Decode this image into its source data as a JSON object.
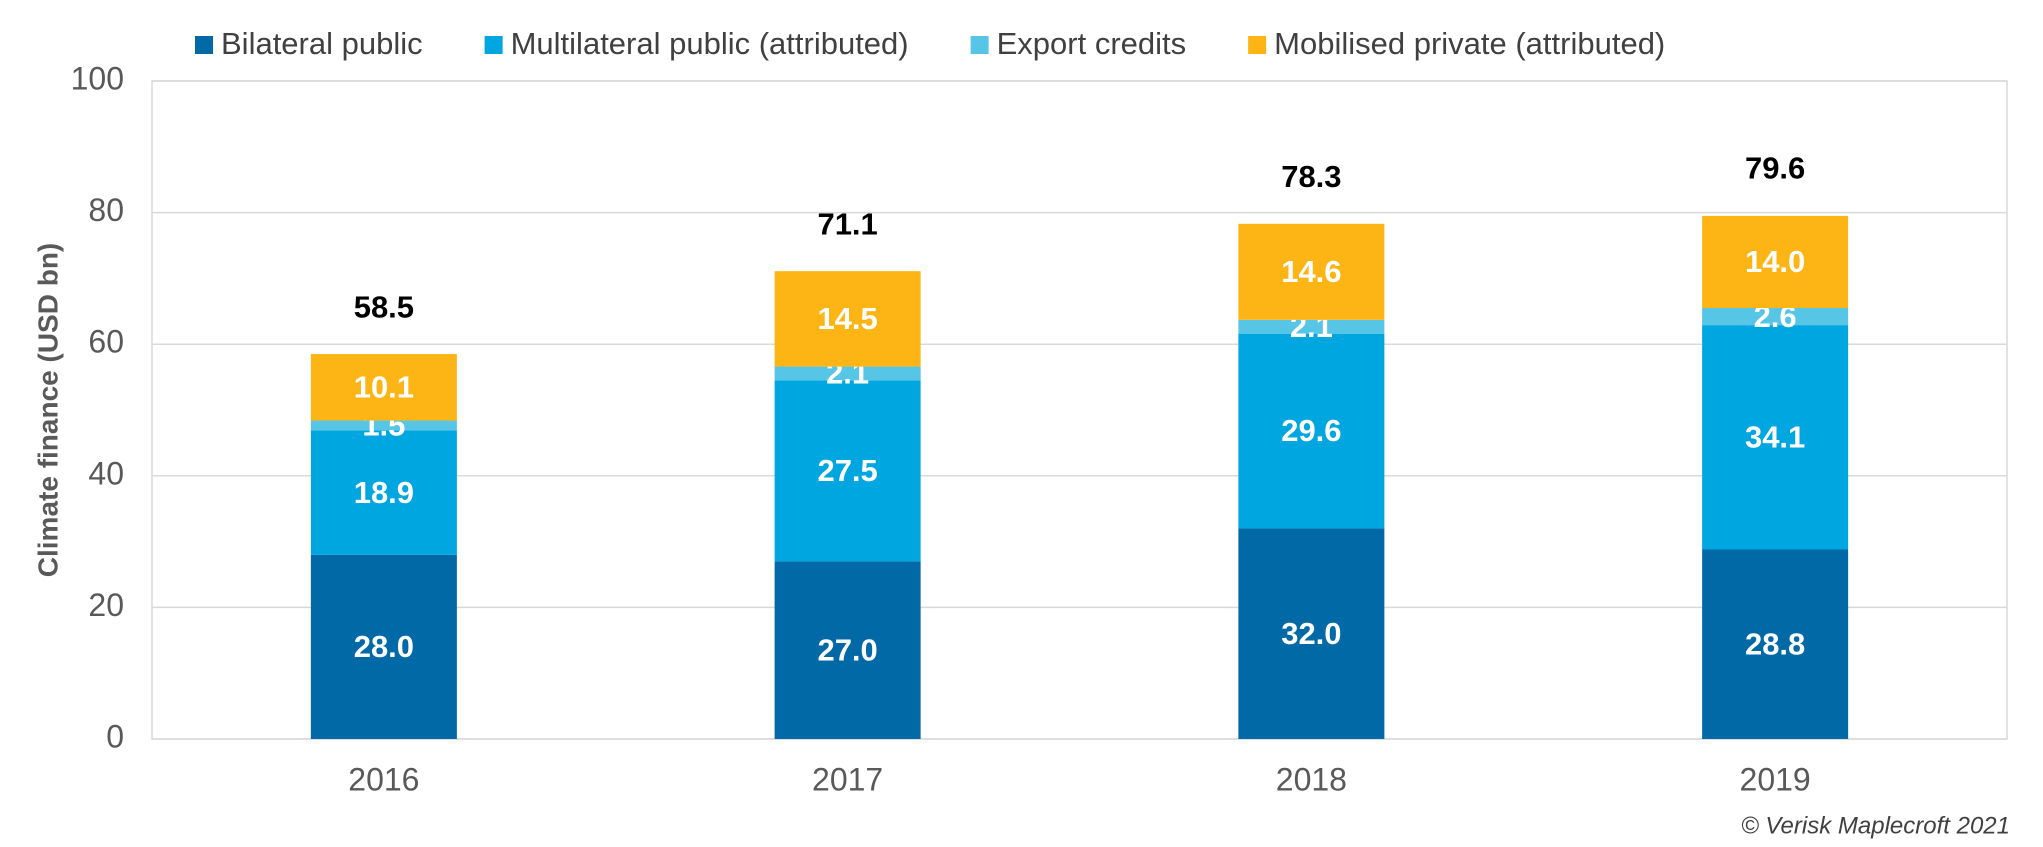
{
  "chart_data": {
    "type": "stacked_bar",
    "y_label": "Climate finance (USD bn)",
    "categories": [
      "2016",
      "2017",
      "2018",
      "2019"
    ],
    "series": [
      {
        "name": "Bilateral public",
        "color": "#0069a6",
        "values": [
          28,
          27,
          32,
          28.8
        ],
        "value_labels": [
          "28.0",
          "27.0",
          "32.0",
          "28.8"
        ]
      },
      {
        "name": "Multilateral public (attributed)",
        "color": "#00a6df",
        "values": [
          18.9,
          27.5,
          29.6,
          34.1
        ]
      },
      {
        "name": "Export credits",
        "color": "#56c5e6",
        "values": [
          1.5,
          2.1,
          2.1,
          2.6
        ]
      },
      {
        "name": "Mobilised private (attributed)",
        "color": "#fdb515",
        "values": [
          10.1,
          14.5,
          14.6,
          14
        ],
        "value_labels": [
          "10.1",
          "14.5",
          "14.6",
          "14.0"
        ]
      }
    ],
    "totals": [
      58.5,
      71.1,
      78.3,
      79.6
    ],
    "ylim": [
      0,
      100
    ],
    "yticks": [
      0,
      20,
      40,
      60,
      80,
      100
    ],
    "grid": true,
    "legend": "top",
    "source": "© Verisk Maplecroft 2021"
  }
}
